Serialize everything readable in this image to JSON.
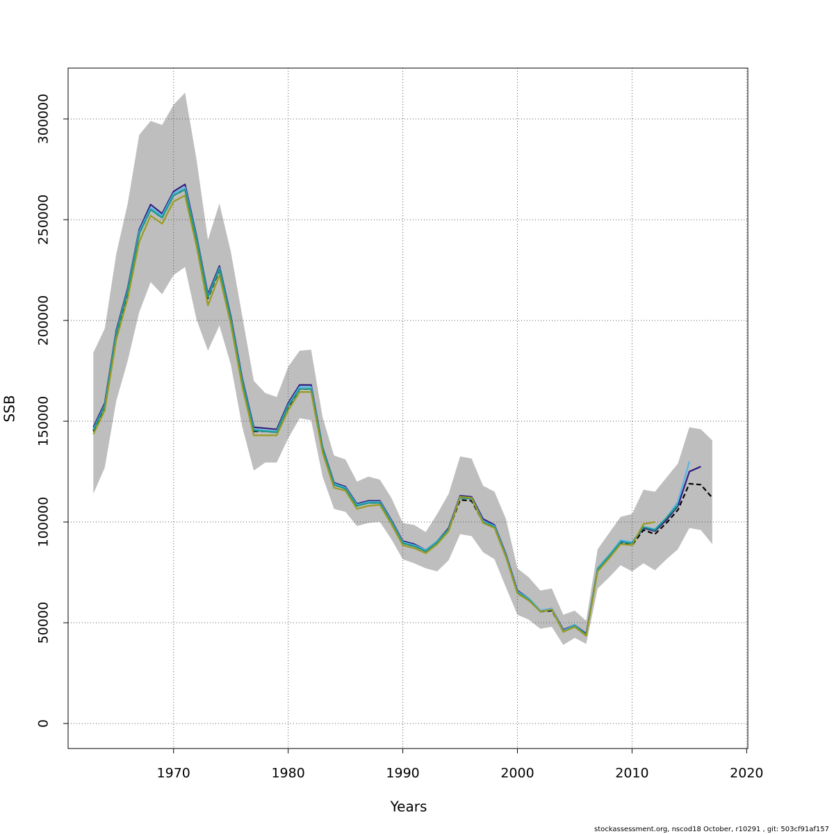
{
  "chart_data": {
    "type": "line",
    "xlabel": "Years",
    "ylabel": "SSB",
    "footer": "stockassessment.org, nscod18  October, r10291 , git: 503cf91af157",
    "xlim": [
      1960.8,
      2020.1
    ],
    "ylim": [
      -12400,
      325200
    ],
    "xticks": [
      1970,
      1980,
      1990,
      2000,
      2010,
      2020
    ],
    "yticks": [
      0,
      50000,
      100000,
      150000,
      200000,
      250000,
      300000
    ],
    "grid": true,
    "x": [
      1963,
      1964,
      1965,
      1966,
      1967,
      1968,
      1969,
      1970,
      1971,
      1972,
      1973,
      1974,
      1975,
      1976,
      1977,
      1978,
      1979,
      1980,
      1981,
      1982,
      1983,
      1984,
      1985,
      1986,
      1987,
      1988,
      1989,
      1990,
      1991,
      1992,
      1993,
      1994,
      1995,
      1996,
      1997,
      1998,
      1999,
      2000,
      2001,
      2002,
      2003,
      2004,
      2005,
      2006,
      2007,
      2008,
      2009,
      2010,
      2011,
      2012,
      2013,
      2014,
      2015,
      2016,
      2017
    ],
    "band": {
      "color": "#bebebe",
      "upper": [
        184000,
        196000,
        233000,
        258000,
        292000,
        299000,
        297000,
        307000,
        313000,
        280000,
        240000,
        258000,
        234000,
        202000,
        170000,
        164000,
        162000,
        177000,
        185000,
        185500,
        152000,
        133000,
        131000,
        120000,
        122500,
        121000,
        112000,
        99500,
        98500,
        95000,
        104000,
        114000,
        132500,
        131500,
        118000,
        115000,
        101500,
        77000,
        72500,
        66000,
        67000,
        54000,
        56000,
        51000,
        86500,
        94500,
        102500,
        104000,
        116000,
        115000,
        122000,
        129000,
        147000,
        146000,
        140500
      ],
      "lower": [
        114000,
        127000,
        160000,
        180000,
        204000,
        219000,
        213000,
        222500,
        226500,
        200500,
        185000,
        197500,
        178000,
        147000,
        125500,
        129500,
        129500,
        141500,
        151500,
        150500,
        122500,
        106500,
        105000,
        98000,
        99500,
        100000,
        91500,
        81500,
        79500,
        77000,
        75500,
        81000,
        94000,
        93000,
        85000,
        81500,
        67500,
        54000,
        51500,
        47000,
        48000,
        39000,
        42500,
        39500,
        67000,
        72500,
        78500,
        75500,
        79500,
        76000,
        81500,
        86500,
        97000,
        96000,
        89000
      ]
    },
    "series": [
      {
        "color": "#000000",
        "linestyle": "dashed",
        "values": [
          145000,
          157000,
          193000,
          214000,
          243000,
          255000,
          251000,
          262000,
          265000,
          240000,
          211000,
          225000,
          200000,
          169000,
          145000,
          145000,
          144500,
          157000,
          166000,
          166000,
          136000,
          118500,
          116500,
          108000,
          109500,
          109500,
          100000,
          89500,
          88000,
          85500,
          90000,
          96000,
          111000,
          110500,
          100000,
          97500,
          83000,
          65000,
          61500,
          55500,
          56000,
          46000,
          48500,
          44000,
          76000,
          82500,
          89500,
          88500,
          96000,
          94000,
          99500,
          106000,
          119000,
          118500,
          112000
        ]
      },
      {
        "color": "#2e1e80",
        "linestyle": "solid",
        "values": [
          147000,
          159000,
          195000,
          216000,
          245000,
          257500,
          253000,
          264000,
          267500,
          242000,
          213000,
          227000,
          202000,
          171000,
          147000,
          146500,
          146000,
          159000,
          168000,
          168000,
          137000,
          119500,
          117500,
          109000,
          110500,
          110500,
          101000,
          90500,
          89000,
          86000,
          90500,
          97000,
          113000,
          112500,
          101500,
          98500,
          84000,
          66000,
          62000,
          56000,
          57000,
          46500,
          49000,
          44500,
          77000,
          83500,
          90500,
          89500,
          97000,
          95500,
          101000,
          108000,
          125000,
          127500,
          null
        ]
      },
      {
        "color": "#56b4e9",
        "linestyle": "solid",
        "values": [
          146000,
          158000,
          194000,
          215000,
          244000,
          256000,
          252000,
          263000,
          266000,
          241000,
          212000,
          226000,
          201000,
          170000,
          146000,
          145500,
          145000,
          158000,
          167000,
          167000,
          136500,
          119000,
          117000,
          108500,
          110000,
          110000,
          100500,
          90000,
          88500,
          86000,
          90500,
          96500,
          112500,
          112000,
          100500,
          98000,
          83500,
          65500,
          62000,
          56000,
          57000,
          46000,
          49000,
          44000,
          77000,
          83500,
          91000,
          90000,
          97500,
          96500,
          102000,
          110000,
          130000,
          null,
          null
        ]
      },
      {
        "color": "#1a9a8a",
        "linestyle": "solid",
        "values": [
          145500,
          157500,
          193500,
          214500,
          243000,
          255000,
          251000,
          262000,
          265000,
          240500,
          211500,
          225500,
          200500,
          169500,
          145500,
          145000,
          144500,
          157500,
          166000,
          166000,
          136500,
          118500,
          116500,
          108000,
          109500,
          109500,
          100000,
          89500,
          88000,
          85500,
          90000,
          96500,
          112000,
          111500,
          100000,
          97500,
          83000,
          65000,
          61500,
          55500,
          56500,
          45500,
          48500,
          44000,
          76500,
          83000,
          90000,
          89500,
          97500,
          96000,
          102000,
          108500,
          null,
          null,
          null
        ]
      },
      {
        "color": "#9a9a1f",
        "linestyle": "solid",
        "values": [
          143500,
          155500,
          190500,
          211000,
          239000,
          252000,
          248000,
          259000,
          262000,
          237000,
          207500,
          222500,
          198000,
          167000,
          143000,
          143000,
          143000,
          155500,
          164500,
          164500,
          134500,
          117000,
          115500,
          106500,
          108000,
          108500,
          99000,
          88500,
          87000,
          84500,
          89000,
          95500,
          112500,
          112000,
          99500,
          97000,
          82500,
          64500,
          61000,
          55500,
          56500,
          45500,
          48000,
          43500,
          75500,
          82000,
          89000,
          88500,
          99000,
          100000,
          null,
          null,
          null,
          null,
          null
        ]
      }
    ]
  }
}
